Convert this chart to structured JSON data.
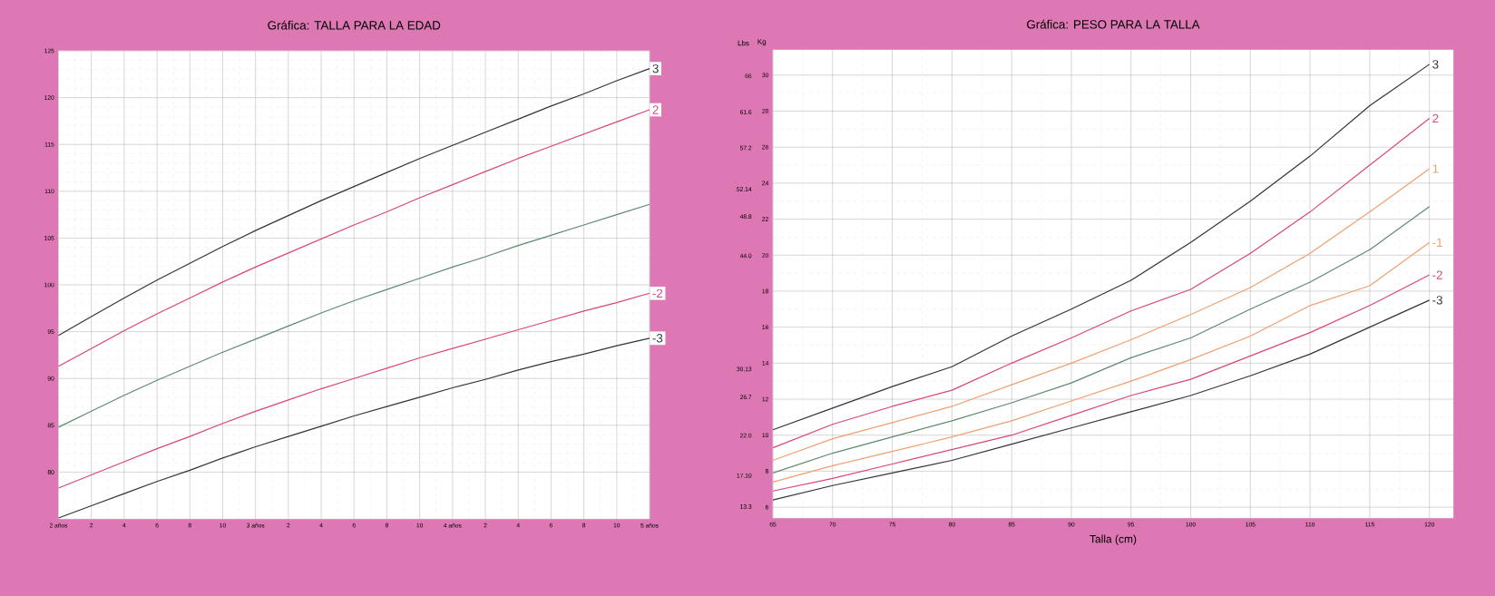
{
  "chart_data": [
    {
      "type": "line",
      "title": "Gráfica: TALLA PARA LA EDAD",
      "categories": [
        "2 años",
        "2",
        "4",
        "6",
        "8",
        "10",
        "3 años",
        "2",
        "4",
        "6",
        "8",
        "10",
        "4 años",
        "2",
        "4",
        "6",
        "8",
        "10",
        "5 años"
      ],
      "ylim": [
        75,
        125
      ],
      "yticks": [
        80,
        85,
        90,
        95,
        100,
        105,
        110,
        115,
        120,
        125
      ],
      "grid": true,
      "series": [
        {
          "name": "3",
          "color": "#33333f",
          "values": [
            94.6,
            96.6,
            98.6,
            100.5,
            102.3,
            104.1,
            105.8,
            107.4,
            109.0,
            110.5,
            112.0,
            113.5,
            114.9,
            116.3,
            117.7,
            119.1,
            120.4,
            121.8,
            123.1
          ]
        },
        {
          "name": "2",
          "color": "#d9457a",
          "values": [
            91.3,
            93.2,
            95.1,
            96.9,
            98.6,
            100.3,
            101.9,
            103.4,
            104.9,
            106.4,
            107.8,
            109.3,
            110.7,
            112.1,
            113.5,
            114.8,
            116.1,
            117.4,
            118.7
          ]
        },
        {
          "color": "#5e8a6e",
          "values": [
            84.8,
            86.5,
            88.2,
            89.8,
            91.3,
            92.8,
            94.2,
            95.6,
            97.0,
            98.3,
            99.5,
            100.7,
            101.9,
            103.0,
            104.2,
            105.3,
            106.4,
            107.5,
            108.6
          ]
        },
        {
          "name": "-2",
          "color": "#d9457a",
          "values": [
            78.3,
            79.7,
            81.1,
            82.5,
            83.8,
            85.2,
            86.5,
            87.7,
            88.9,
            90.0,
            91.1,
            92.2,
            93.2,
            94.2,
            95.2,
            96.2,
            97.2,
            98.1,
            99.1
          ]
        },
        {
          "name": "-3",
          "color": "#33333f",
          "values": [
            75.1,
            76.4,
            77.7,
            79.0,
            80.2,
            81.5,
            82.7,
            83.8,
            84.9,
            86.0,
            87.0,
            88.0,
            89.0,
            89.9,
            90.9,
            91.8,
            92.6,
            93.5,
            94.3
          ]
        }
      ]
    },
    {
      "type": "line",
      "title": "Gráfica: PESO PARA LA TALLA",
      "xlabel": "Talla (cm)",
      "ylabel": "Kg",
      "y2label": "Lbs",
      "x": [
        65,
        70,
        75,
        80,
        85,
        90,
        95,
        100,
        105,
        110,
        115,
        120
      ],
      "xlim": [
        65,
        122
      ],
      "xticks": [
        65,
        70,
        75,
        80,
        85,
        90,
        95,
        100,
        105,
        110,
        115,
        120
      ],
      "ylim": [
        5.4,
        31.4
      ],
      "yticks": [
        6,
        8,
        10,
        12,
        14,
        16,
        18,
        20,
        22,
        24,
        26,
        28,
        30
      ],
      "y2lim": [
        11.9,
        69.2
      ],
      "y2ticks": [
        {
          "value": 13.3,
          "label": "13.3"
        },
        {
          "value": 17.1,
          "label": "17.10"
        },
        {
          "value": 22,
          "label": "22.0"
        },
        26.7,
        30.13,
        {
          "value": 44,
          "label": "44.0"
        },
        48.8,
        52.14,
        57.2,
        61.6,
        66
      ],
      "grid": true,
      "series": [
        {
          "name": "3",
          "color": "#33333f",
          "values": [
            10.3,
            11.5,
            12.7,
            13.8,
            15.5,
            17.0,
            18.6,
            20.7,
            23.0,
            25.5,
            28.3,
            30.6
          ]
        },
        {
          "name": "2",
          "color": "#d9457a",
          "values": [
            9.3,
            10.6,
            11.6,
            12.5,
            14.0,
            15.4,
            16.9,
            18.1,
            20.1,
            22.4,
            25.0,
            27.6
          ]
        },
        {
          "name": "1",
          "color": "#f0a070",
          "values": [
            8.6,
            9.8,
            10.7,
            11.6,
            12.8,
            14.0,
            15.3,
            16.7,
            18.2,
            20.1,
            22.4,
            24.8
          ]
        },
        {
          "color": "#5e8a6e",
          "values": [
            7.9,
            9.0,
            9.9,
            10.8,
            11.8,
            12.9,
            14.3,
            15.4,
            17.0,
            18.5,
            20.3,
            22.7
          ]
        },
        {
          "name": "-1",
          "color": "#f0a070",
          "values": [
            7.4,
            8.3,
            9.1,
            9.9,
            10.8,
            11.9,
            13.0,
            14.2,
            15.5,
            17.2,
            18.3,
            20.7
          ]
        },
        {
          "name": "-2",
          "color": "#d9457a",
          "values": [
            6.9,
            7.6,
            8.4,
            9.2,
            10.0,
            11.1,
            12.2,
            13.1,
            14.4,
            15.7,
            17.2,
            18.9
          ]
        },
        {
          "name": "-3",
          "color": "#33333f",
          "values": [
            6.4,
            7.2,
            7.9,
            8.6,
            9.5,
            10.4,
            11.3,
            12.2,
            13.3,
            14.5,
            16.0,
            17.5
          ]
        }
      ]
    }
  ]
}
